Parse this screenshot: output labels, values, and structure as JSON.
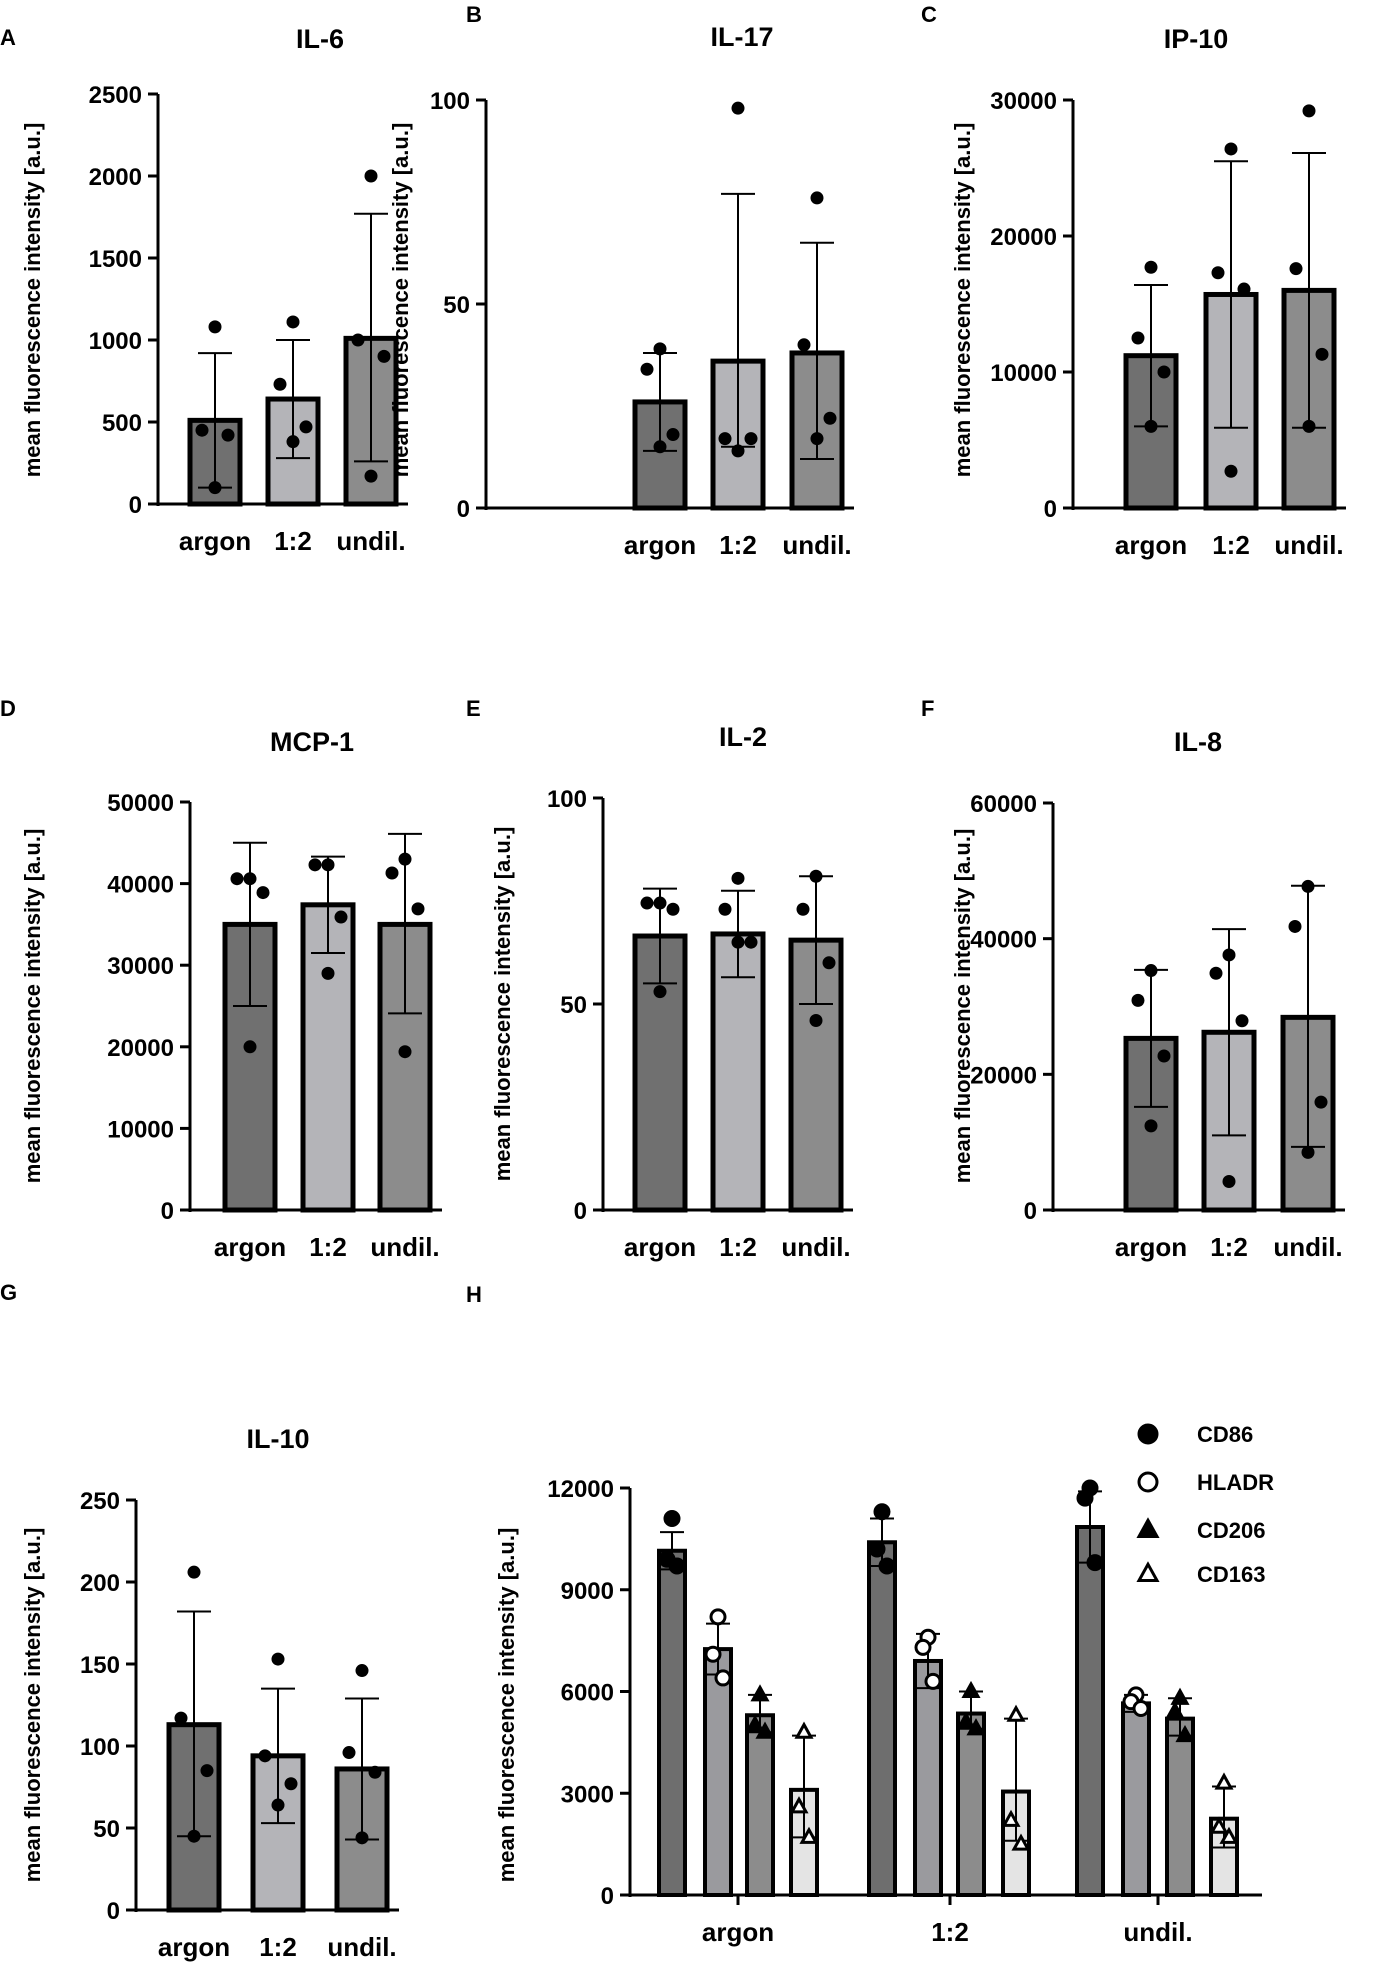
{
  "chart_data": [
    {
      "panel": "A",
      "type": "bar",
      "title": "IL-6",
      "ylabel": "mean fluorescence intensity [a.u.]",
      "categories": [
        "argon",
        "1:2",
        "undil."
      ],
      "values": [
        510,
        640,
        1010
      ],
      "sd_upper": [
        920,
        1000,
        1770
      ],
      "sd_lower": [
        100,
        280,
        260
      ],
      "points": [
        [
          1080,
          450,
          420,
          100
        ],
        [
          1110,
          730,
          470,
          380
        ],
        [
          2000,
          1000,
          900,
          170
        ]
      ],
      "colors": [
        "#707070",
        "#b4b4b8",
        "#8c8c8c"
      ],
      "ylim": [
        0,
        2500
      ],
      "yticks": [
        0,
        500,
        1000,
        1500,
        2000,
        2500
      ]
    },
    {
      "panel": "B",
      "type": "bar",
      "title": "IL-17",
      "ylabel": "mean fluorescence intensity [a.u.]",
      "categories": [
        "argon",
        "1:2",
        "undil."
      ],
      "values": [
        26,
        36,
        38
      ],
      "sd_upper": [
        38,
        77,
        65
      ],
      "sd_lower": [
        14,
        15,
        12
      ],
      "points": [
        [
          39,
          34,
          18,
          15
        ],
        [
          98,
          17,
          17,
          14
        ],
        [
          76,
          40,
          22,
          17
        ]
      ],
      "colors": [
        "#707070",
        "#b4b4b8",
        "#8c8c8c"
      ],
      "ylim": [
        0,
        100
      ],
      "yticks": [
        0,
        50,
        100
      ]
    },
    {
      "panel": "C",
      "type": "bar",
      "title": "IP-10",
      "ylabel": "mean fluorescence intensity [a.u.]",
      "categories": [
        "argon",
        "1:2",
        "undil."
      ],
      "values": [
        11200,
        15700,
        16000
      ],
      "sd_upper": [
        16400,
        25500,
        26100
      ],
      "sd_lower": [
        6000,
        5900,
        5900
      ],
      "points": [
        [
          17700,
          12500,
          10000,
          6000
        ],
        [
          26400,
          17300,
          16100,
          2700
        ],
        [
          29200,
          17600,
          11300,
          6000
        ]
      ],
      "colors": [
        "#707070",
        "#b4b4b8",
        "#8c8c8c"
      ],
      "ylim": [
        0,
        30000
      ],
      "yticks": [
        0,
        10000,
        20000,
        30000
      ]
    },
    {
      "panel": "D",
      "type": "bar",
      "title": "MCP-1",
      "ylabel": "mean fluorescence intensity [a.u.]",
      "categories": [
        "argon",
        "1:2",
        "undil."
      ],
      "values": [
        35000,
        37400,
        35000
      ],
      "sd_upper": [
        45000,
        43300,
        46100
      ],
      "sd_lower": [
        25000,
        31500,
        24100
      ],
      "points": [
        [
          40600,
          40600,
          38900,
          20000
        ],
        [
          42300,
          42300,
          35900,
          29000
        ],
        [
          43000,
          41300,
          36900,
          19400
        ]
      ],
      "colors": [
        "#707070",
        "#b4b4b8",
        "#8c8c8c"
      ],
      "ylim": [
        0,
        50000
      ],
      "yticks": [
        0,
        10000,
        20000,
        30000,
        40000,
        50000
      ]
    },
    {
      "panel": "E",
      "type": "bar",
      "title": "IL-2",
      "ylabel": "mean fluorescence intensity [a.u.]",
      "categories": [
        "argon",
        "1:2",
        "undil."
      ],
      "values": [
        66.5,
        67,
        65.5
      ],
      "sd_upper": [
        78,
        77.5,
        81
      ],
      "sd_lower": [
        55,
        56.5,
        50
      ],
      "points": [
        [
          74.5,
          74.5,
          73,
          53
        ],
        [
          80.5,
          73,
          65,
          65
        ],
        [
          81,
          73,
          60,
          46
        ]
      ],
      "colors": [
        "#707070",
        "#b4b4b8",
        "#8c8c8c"
      ],
      "ylim": [
        0,
        100
      ],
      "yticks": [
        0,
        50,
        100
      ]
    },
    {
      "panel": "F",
      "type": "bar",
      "title": "IL-8",
      "ylabel": "mean fluorescence intensity [a.u.]",
      "categories": [
        "argon",
        "1:2",
        "undil."
      ],
      "values": [
        25300,
        26200,
        28400
      ],
      "sd_upper": [
        35400,
        41400,
        47800
      ],
      "sd_lower": [
        15200,
        11000,
        9300
      ],
      "points": [
        [
          35300,
          30900,
          22700,
          12400
        ],
        [
          37600,
          34900,
          27900,
          4200
        ],
        [
          47700,
          41800,
          15900,
          8500
        ]
      ],
      "colors": [
        "#707070",
        "#b4b4b8",
        "#8c8c8c"
      ],
      "ylim": [
        0,
        60000
      ],
      "yticks": [
        0,
        20000,
        40000,
        60000
      ]
    },
    {
      "panel": "G",
      "type": "bar",
      "title": "IL-10",
      "ylabel": "mean fluorescence intensity [a.u.]",
      "categories": [
        "argon",
        "1:2",
        "undil."
      ],
      "values": [
        113,
        94,
        86
      ],
      "sd_upper": [
        182,
        135,
        129
      ],
      "sd_lower": [
        45,
        53,
        43
      ],
      "points": [
        [
          206,
          117,
          85,
          45
        ],
        [
          153,
          94,
          77,
          64
        ],
        [
          146,
          96,
          84,
          44
        ]
      ],
      "colors": [
        "#707070",
        "#b4b4b8",
        "#8c8c8c"
      ],
      "ylim": [
        0,
        250
      ],
      "yticks": [
        0,
        50,
        100,
        150,
        200,
        250
      ]
    },
    {
      "panel": "H",
      "type": "grouped-bar",
      "ylabel": "mean fluorescence intensity  [a.u.]",
      "categories": [
        "argon",
        "1:2",
        "undil."
      ],
      "ylim": [
        0,
        12000
      ],
      "yticks": [
        0,
        3000,
        6000,
        9000,
        12000
      ],
      "series": [
        {
          "name": "CD86",
          "marker": "filled-circle",
          "color": "#6e6e6e",
          "values": [
            10150,
            10400,
            10850
          ],
          "sd_upper": [
            10700,
            11100,
            11900
          ],
          "sd_lower": [
            9600,
            9700,
            9800
          ],
          "points": [
            [
              11100,
              9900,
              9700
            ],
            [
              11300,
              10200,
              9700
            ],
            [
              12000,
              11700,
              9800
            ]
          ]
        },
        {
          "name": "HLADR",
          "marker": "open-circle",
          "color": "#9a9a9e",
          "values": [
            7250,
            6900,
            5650
          ],
          "sd_upper": [
            8000,
            7700,
            5900
          ],
          "sd_lower": [
            6500,
            6100,
            5400
          ],
          "points": [
            [
              8200,
              7100,
              6400
            ],
            [
              7600,
              7300,
              6300
            ],
            [
              5900,
              5700,
              5500
            ]
          ],
          "_point_note": "open circles"
        },
        {
          "name": "CD206",
          "marker": "filled-triangle",
          "color": "#8c8c8c",
          "values": [
            5300,
            5350,
            5200
          ],
          "sd_upper": [
            5900,
            6000,
            5800
          ],
          "sd_lower": [
            4800,
            4900,
            4700
          ],
          "points": [
            [
              5900,
              5000,
              4800
            ],
            [
              6000,
              5100,
              4900
            ],
            [
              5800,
              5400,
              4700
            ]
          ]
        },
        {
          "name": "CD163",
          "marker": "open-triangle",
          "color": "#e4e4e4",
          "values": [
            3100,
            3050,
            2250
          ],
          "sd_upper": [
            4700,
            5200,
            3200
          ],
          "sd_lower": [
            1700,
            1600,
            1400
          ],
          "points": [
            [
              4800,
              2600,
              1700
            ],
            [
              5300,
              2200,
              1500
            ],
            [
              3300,
              2000,
              1700
            ]
          ]
        }
      ]
    }
  ]
}
